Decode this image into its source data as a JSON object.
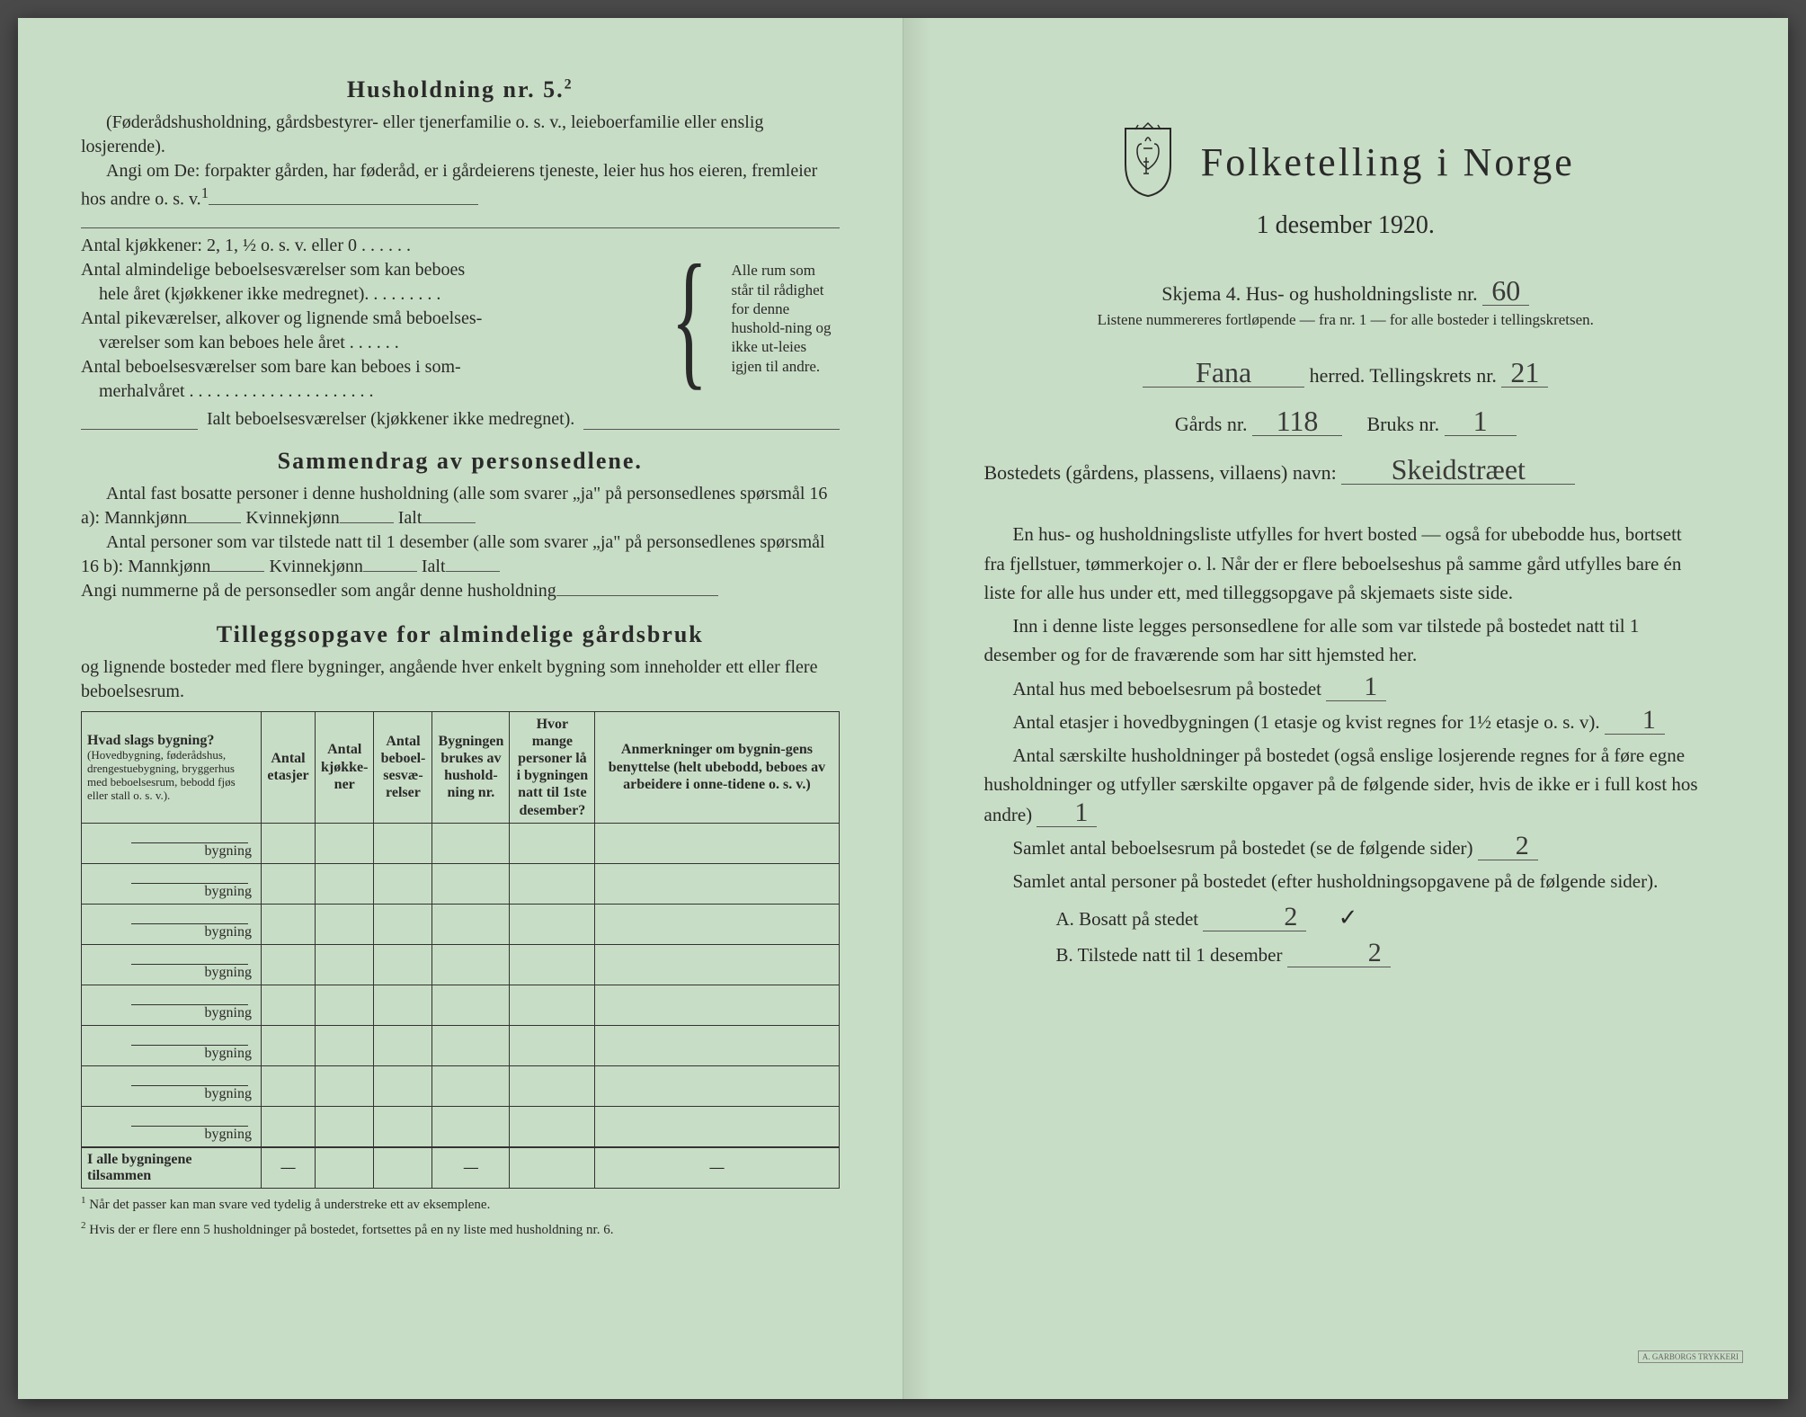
{
  "colors": {
    "paper": "#c8ddc5",
    "ink": "#2a2a2a",
    "handwriting": "#3a3a3a",
    "rule": "#555555",
    "border": "#333333"
  },
  "left": {
    "household_title": "Husholdning nr. 5.",
    "household_title_sup": "2",
    "hh_p1": "(Føderådshusholdning, gårdsbestyrer- eller tjenerfamilie o. s. v., leieboerfamilie eller enslig losjerende).",
    "hh_p2": "Angi om De:  forpakter gården, har føderåd, er i gårdeierens tjeneste, leier hus hos eieren, fremleier hos andre o. s. v.",
    "hh_p2_sup": "1",
    "kj_line": "Antal kjøkkener: 2, 1, ½ o. s. v. eller 0 . . . . . .",
    "room_l1a": "Antal almindelige beboelsesværelser som kan beboes",
    "room_l1b": "hele året (kjøkkener ikke medregnet). . . . . . . . .",
    "room_l2a": "Antal pikeværelser, alkover og lignende små beboelses-",
    "room_l2b": "værelser som kan beboes hele året . . . . . .",
    "room_l3a": "Antal beboelsesværelser som bare kan beboes i som-",
    "room_l3b": "merhalvåret . . . . . . . . . . . . . . . . . . . . .",
    "room_right": "Alle rum som står til rådighet for denne hushold-ning og ikke ut-leies igjen til andre.",
    "ialt": "Ialt beboelsesværelser  (kjøkkener ikke medregnet).",
    "sammen_title": "Sammendrag av personsedlene.",
    "sammen_p1a": "Antal fast bosatte personer i denne husholdning (alle som svarer „ja\" på personsedlenes spørsmål 16 a): Mannkjønn",
    "sammen_p1b": "Kvinnekjønn",
    "sammen_p1c": "Ialt",
    "sammen_p2a": "Antal personer som var tilstede natt til 1 desember (alle som svarer „ja\" på personsedlenes spørsmål 16 b): Mannkjønn",
    "sammen_p2b": "Kvinnekjønn",
    "sammen_p2c": "Ialt",
    "sammen_p3": "Angi nummerne på de personsedler som angår denne husholdning",
    "tillegg_title": "Tilleggsopgave for almindelige gårdsbruk",
    "tillegg_sub": "og lignende bosteder med flere bygninger, angående hver enkelt bygning som inneholder ett eller flere beboelsesrum.",
    "table": {
      "h1": "Hvad slags bygning?",
      "h1_small": "(Hovedbygning, føderådshus, drengestuebygning, bryggerhus med beboelsesrum, bebodd fjøs eller stall o. s. v.).",
      "h2": "Antal etasjer",
      "h3": "Antal kjøkke-ner",
      "h4": "Antal beboel-sesvæ-relser",
      "h5": "Bygningen brukes av hushold-ning nr.",
      "h6": "Hvor mange personer lå i bygningen natt til 1ste desember?",
      "h7": "Anmerkninger om bygnin-gens benyttelse (helt ubebodd, beboes av arbeidere i onne-tidene o. s. v.)",
      "row_label": "bygning",
      "row_count": 8,
      "total_label": "I alle bygningene tilsammen",
      "dash": "—"
    },
    "fn1_sup": "1",
    "fn1": " Når det passer kan man svare ved tydelig å understreke ett av eksemplene.",
    "fn2_sup": "2",
    "fn2": " Hvis der er flere enn 5 husholdninger på bostedet, fortsettes på en ny liste med husholdning nr. 6."
  },
  "right": {
    "main_title": "Folketelling i Norge",
    "subtitle": "1 desember 1920.",
    "schema": "Skjema 4.  Hus- og husholdningsliste nr.",
    "schema_nr": "60",
    "schema_sub": "Listene nummereres fortløpende — fra nr. 1 — for alle bosteder i tellingskretsen.",
    "herred_hw": "Fana",
    "herred_label": "herred.  Tellingskrets nr.",
    "krets_nr": "21",
    "gaard_label": "Gårds nr.",
    "gaard_nr": "118",
    "bruks_label": "Bruks nr.",
    "bruks_nr": "1",
    "bosted_label": "Bostedets (gårdens, plassens, villaens) navn:",
    "bosted_hw": "Skeidstræet",
    "para1": "En hus- og husholdningsliste utfylles for hvert bosted — også for ubebodde hus, bortsett fra fjellstuer, tømmerkojer o. l.  Når der er flere beboelseshus på samme gård utfylles bare én liste for alle hus under ett, med tilleggsopgave på skjemaets siste side.",
    "para2": "Inn i denne liste legges personsedlene for alle som var tilstede på bostedet natt til 1 desember og for de fraværende som har sitt hjemsted her.",
    "q1": "Antal hus med beboelsesrum på bostedet",
    "q1_hw": "1",
    "q2a": "Antal etasjer i hovedbygningen (1 etasje og kvist regnes for 1½ etasje o. s. v).",
    "q2_hw": "1",
    "q3": "Antal særskilte husholdninger på bostedet (også enslige losjerende regnes for å føre egne husholdninger og utfyller særskilte opgaver på de følgende sider, hvis de ikke er i full kost hos andre)",
    "q3_hw": "1",
    "q4": "Samlet antal beboelsesrum på bostedet (se de følgende sider)",
    "q4_hw": "2",
    "q5": "Samlet antal personer på bostedet (efter husholdningsopgavene på de følgende sider).",
    "q5a": "A.  Bosatt på stedet",
    "q5a_hw": "2",
    "q5b": "B.  Tilstede natt til 1 desember",
    "q5b_hw": "2",
    "printer": "A. GARBORGS TRYKKERI"
  }
}
